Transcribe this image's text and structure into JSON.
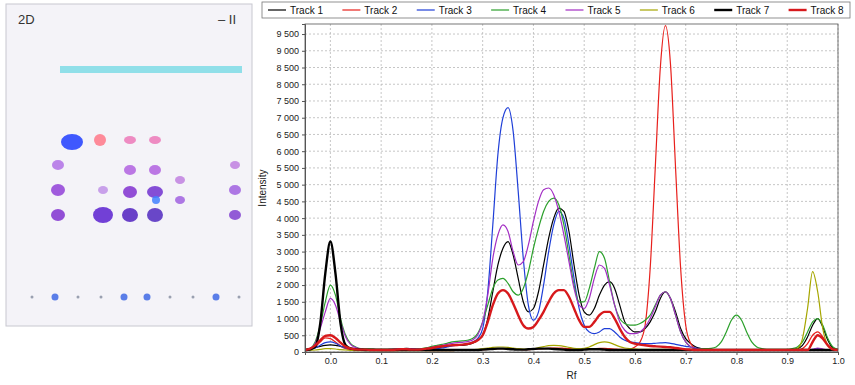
{
  "plate": {
    "label": "2D",
    "note": "– II"
  },
  "chart_data": {
    "type": "line",
    "x_label": "Rf",
    "y_label": "Intensity",
    "xlim": [
      -0.05,
      1.0
    ],
    "ylim": [
      0,
      9800
    ],
    "xticks": [
      {
        "value": 0,
        "label": "0.0"
      },
      0.1,
      0.2,
      0.3,
      0.4,
      0.5,
      0.6,
      0.7,
      0.8,
      0.9,
      {
        "value": 1,
        "label": "1.0"
      }
    ],
    "yticks": [
      0,
      500,
      {
        "value": 1000,
        "label": "1 000"
      },
      {
        "value": 1500,
        "label": "1 500"
      },
      {
        "value": 2000,
        "label": "2 000"
      },
      {
        "value": 2500,
        "label": "2 500"
      },
      {
        "value": 3000,
        "label": "3 000"
      },
      {
        "value": 3500,
        "label": "3 500"
      },
      {
        "value": 4000,
        "label": "4 000"
      },
      {
        "value": 4500,
        "label": "4 500"
      },
      {
        "value": 5000,
        "label": "5 000"
      },
      {
        "value": 5500,
        "label": "5 500"
      },
      {
        "value": 6000,
        "label": "6 000"
      },
      {
        "value": 6500,
        "label": "6 500"
      },
      {
        "value": 7000,
        "label": "7 000"
      },
      {
        "value": 7500,
        "label": "7 500"
      },
      {
        "value": 8000,
        "label": "8 000"
      },
      {
        "value": 8500,
        "label": "8 500"
      },
      {
        "value": 9000,
        "label": "9 000"
      },
      {
        "value": 9500,
        "label": "9 500"
      }
    ],
    "grid": true,
    "legend": "top",
    "x": [
      -0.05,
      -0.04,
      -0.03,
      -0.02,
      -0.01,
      0,
      0.01,
      0.02,
      0.03,
      0.04,
      0.05,
      0.06,
      0.07,
      0.08,
      0.09,
      0.1,
      0.11,
      0.12,
      0.13,
      0.14,
      0.15,
      0.16,
      0.17,
      0.18,
      0.19,
      0.2,
      0.21,
      0.22,
      0.23,
      0.24,
      0.25,
      0.26,
      0.27,
      0.28,
      0.29,
      0.3,
      0.31,
      0.32,
      0.33,
      0.34,
      0.35,
      0.36,
      0.37,
      0.38,
      0.39,
      0.4,
      0.41,
      0.42,
      0.43,
      0.44,
      0.45,
      0.46,
      0.47,
      0.48,
      0.49,
      0.5,
      0.51,
      0.52,
      0.53,
      0.54,
      0.55,
      0.56,
      0.57,
      0.58,
      0.59,
      0.6,
      0.61,
      0.62,
      0.63,
      0.64,
      0.65,
      0.66,
      0.67,
      0.68,
      0.69,
      0.7,
      0.71,
      0.72,
      0.73,
      0.74,
      0.75,
      0.76,
      0.77,
      0.78,
      0.79,
      0.8,
      0.81,
      0.82,
      0.83,
      0.84,
      0.85,
      0.86,
      0.87,
      0.88,
      0.89,
      0.9,
      0.91,
      0.92,
      0.93,
      0.94,
      0.95,
      0.96,
      0.97,
      0.98,
      0.99,
      1
    ],
    "series": [
      {
        "name": "Track 1",
        "color": "#000000",
        "line_style": "solid",
        "values": [
          80,
          100,
          130,
          170,
          200,
          210,
          200,
          170,
          140,
          120,
          100,
          90,
          90,
          90,
          80,
          80,
          80,
          80,
          90,
          100,
          110,
          100,
          90,
          80,
          80,
          100,
          120,
          150,
          170,
          200,
          200,
          200,
          220,
          260,
          350,
          500,
          1000,
          1800,
          2600,
          3100,
          3300,
          2900,
          2200,
          1500,
          1200,
          1300,
          1800,
          2600,
          3400,
          4000,
          4300,
          4200,
          3600,
          2600,
          1700,
          1200,
          1100,
          1300,
          1700,
          2000,
          2100,
          1900,
          1400,
          900,
          700,
          600,
          600,
          700,
          900,
          1200,
          1600,
          1800,
          1600,
          1200,
          700,
          400,
          250,
          150,
          100,
          80,
          70,
          60,
          60,
          60,
          60,
          60,
          60,
          60,
          60,
          60,
          60,
          60,
          60,
          60,
          60,
          60,
          70,
          100,
          200,
          450,
          800,
          1000,
          750,
          350,
          120,
          60
        ]
      },
      {
        "name": "Track 2",
        "color": "#e8201c",
        "line_style": "solid",
        "values": [
          50,
          80,
          150,
          300,
          420,
          400,
          300,
          180,
          100,
          70,
          50,
          50,
          50,
          50,
          50,
          40,
          40,
          40,
          40,
          50,
          50,
          50,
          50,
          50,
          40,
          40,
          40,
          40,
          40,
          40,
          50,
          50,
          50,
          60,
          60,
          70,
          80,
          90,
          100,
          100,
          100,
          90,
          80,
          70,
          70,
          80,
          90,
          100,
          110,
          120,
          120,
          110,
          100,
          90,
          80,
          80,
          90,
          100,
          110,
          110,
          100,
          90,
          80,
          80,
          90,
          150,
          300,
          800,
          2500,
          5500,
          8500,
          9750,
          8600,
          5500,
          2500,
          800,
          250,
          100,
          60,
          50,
          50,
          50,
          50,
          50,
          50,
          50,
          50,
          50,
          50,
          50,
          50,
          50,
          50,
          50,
          50,
          50,
          50,
          60,
          100,
          250,
          500,
          600,
          450,
          200,
          80,
          50
        ]
      },
      {
        "name": "Track 3",
        "color": "#1f3fd8",
        "line_style": "solid",
        "values": [
          60,
          80,
          120,
          200,
          280,
          300,
          260,
          180,
          120,
          90,
          70,
          60,
          60,
          60,
          60,
          60,
          60,
          60,
          70,
          80,
          90,
          90,
          80,
          70,
          70,
          80,
          100,
          120,
          150,
          180,
          200,
          220,
          250,
          300,
          400,
          700,
          1800,
          3800,
          5900,
          7000,
          7300,
          6600,
          4800,
          2800,
          1400,
          950,
          1200,
          2000,
          3000,
          3800,
          4200,
          4000,
          3200,
          2200,
          1300,
          800,
          600,
          550,
          600,
          700,
          700,
          600,
          450,
          350,
          300,
          280,
          260,
          250,
          250,
          260,
          270,
          280,
          260,
          230,
          200,
          170,
          150,
          120,
          100,
          80,
          60,
          60,
          60,
          60,
          60,
          60,
          60,
          60,
          60,
          60,
          60,
          60,
          60,
          60,
          60,
          60,
          60,
          60,
          60,
          60,
          80,
          100,
          80,
          60,
          60,
          60
        ]
      },
      {
        "name": "Track 4",
        "color": "#2ca02c",
        "line_style": "solid",
        "values": [
          50,
          100,
          300,
          800,
          1500,
          2000,
          1700,
          1000,
          500,
          250,
          150,
          100,
          100,
          90,
          80,
          80,
          80,
          90,
          100,
          100,
          90,
          80,
          80,
          100,
          130,
          170,
          200,
          230,
          260,
          300,
          320,
          330,
          350,
          400,
          550,
          900,
          1400,
          1900,
          2150,
          2200,
          2050,
          1800,
          1700,
          1900,
          2400,
          3100,
          3700,
          4200,
          4500,
          4600,
          4400,
          3800,
          2900,
          2000,
          1500,
          1500,
          1900,
          2500,
          3000,
          2800,
          2100,
          1400,
          1000,
          850,
          800,
          800,
          850,
          950,
          1100,
          1400,
          1700,
          1800,
          1600,
          1100,
          600,
          300,
          150,
          100,
          100,
          100,
          110,
          150,
          300,
          600,
          950,
          1100,
          950,
          600,
          300,
          150,
          100,
          80,
          80,
          80,
          80,
          80,
          100,
          150,
          300,
          600,
          900,
          1000,
          800,
          400,
          150,
          80
        ]
      },
      {
        "name": "Track 5",
        "color": "#a32ec4",
        "line_style": "solid",
        "values": [
          50,
          100,
          250,
          700,
          1200,
          1600,
          1400,
          900,
          450,
          220,
          130,
          90,
          80,
          70,
          70,
          70,
          70,
          80,
          90,
          100,
          100,
          90,
          80,
          90,
          110,
          140,
          170,
          200,
          230,
          260,
          280,
          290,
          310,
          360,
          500,
          900,
          1700,
          2800,
          3500,
          3800,
          3600,
          3000,
          2600,
          2700,
          3200,
          3900,
          4500,
          4850,
          4900,
          4700,
          4200,
          3500,
          2700,
          1900,
          1400,
          1300,
          1600,
          2200,
          2600,
          2500,
          2000,
          1400,
          900,
          650,
          550,
          550,
          600,
          750,
          1000,
          1350,
          1700,
          1800,
          1600,
          1100,
          600,
          300,
          150,
          100,
          80,
          70,
          60,
          60,
          60,
          60,
          60,
          60,
          60,
          60,
          60,
          60,
          60,
          60,
          60,
          60,
          60,
          60,
          60,
          60,
          60,
          60,
          80,
          120,
          90,
          60,
          60,
          60
        ]
      },
      {
        "name": "Track 6",
        "color": "#a6a600",
        "line_style": "solid",
        "values": [
          40,
          50,
          60,
          80,
          100,
          100,
          90,
          70,
          60,
          50,
          40,
          40,
          40,
          40,
          40,
          40,
          40,
          40,
          40,
          40,
          40,
          40,
          40,
          40,
          40,
          40,
          40,
          40,
          40,
          40,
          50,
          50,
          60,
          70,
          80,
          100,
          120,
          140,
          150,
          150,
          140,
          120,
          100,
          90,
          90,
          100,
          130,
          160,
          190,
          200,
          190,
          170,
          140,
          110,
          100,
          110,
          150,
          220,
          280,
          300,
          280,
          220,
          160,
          120,
          100,
          90,
          80,
          80,
          80,
          80,
          80,
          80,
          80,
          70,
          60,
          50,
          50,
          50,
          50,
          50,
          50,
          50,
          50,
          50,
          50,
          50,
          50,
          50,
          50,
          50,
          50,
          50,
          50,
          50,
          50,
          50,
          60,
          100,
          400,
          1300,
          2400,
          1800,
          700,
          200,
          80,
          50
        ]
      },
      {
        "name": "Track 7",
        "color": "#000000",
        "line_style": "thick",
        "values": [
          50,
          80,
          150,
          850,
          2350,
          3300,
          2350,
          850,
          200,
          100,
          80,
          70,
          60,
          60,
          60,
          60,
          60,
          60,
          60,
          60,
          60,
          60,
          60,
          60,
          60,
          60,
          60,
          60,
          60,
          60,
          60,
          60,
          60,
          60,
          60,
          70,
          80,
          90,
          100,
          100,
          90,
          80,
          70,
          70,
          80,
          90,
          100,
          100,
          100,
          90,
          80,
          70,
          60,
          60,
          60,
          70,
          80,
          80,
          80,
          70,
          60,
          60,
          60,
          60,
          60,
          60,
          60,
          60,
          60,
          60,
          60,
          60,
          60,
          60,
          60,
          60,
          60,
          60,
          60,
          60,
          60,
          60,
          60,
          60,
          60,
          60,
          60,
          60,
          60,
          60,
          60,
          60,
          60,
          60,
          60,
          60,
          60,
          60,
          60,
          60,
          60,
          60,
          60,
          60,
          60,
          60
        ]
      },
      {
        "name": "Track 8",
        "color": "#d7191c",
        "line_style": "thick",
        "values": [
          60,
          100,
          200,
          350,
          480,
          500,
          420,
          280,
          160,
          100,
          80,
          70,
          70,
          60,
          60,
          60,
          60,
          60,
          70,
          80,
          80,
          70,
          70,
          80,
          100,
          120,
          150,
          170,
          190,
          200,
          210,
          220,
          240,
          280,
          350,
          500,
          900,
          1400,
          1750,
          1850,
          1750,
          1450,
          1100,
          800,
          700,
          750,
          950,
          1200,
          1500,
          1750,
          1850,
          1850,
          1650,
          1300,
          950,
          750,
          750,
          900,
          1100,
          1200,
          1200,
          1000,
          700,
          450,
          300,
          250,
          220,
          200,
          180,
          170,
          160,
          150,
          140,
          120,
          100,
          80,
          70,
          60,
          60,
          60,
          60,
          60,
          60,
          60,
          60,
          60,
          60,
          60,
          60,
          60,
          60,
          60,
          60,
          60,
          60,
          60,
          60,
          60,
          60,
          60,
          300,
          500,
          400,
          200,
          80,
          60
        ]
      }
    ]
  }
}
